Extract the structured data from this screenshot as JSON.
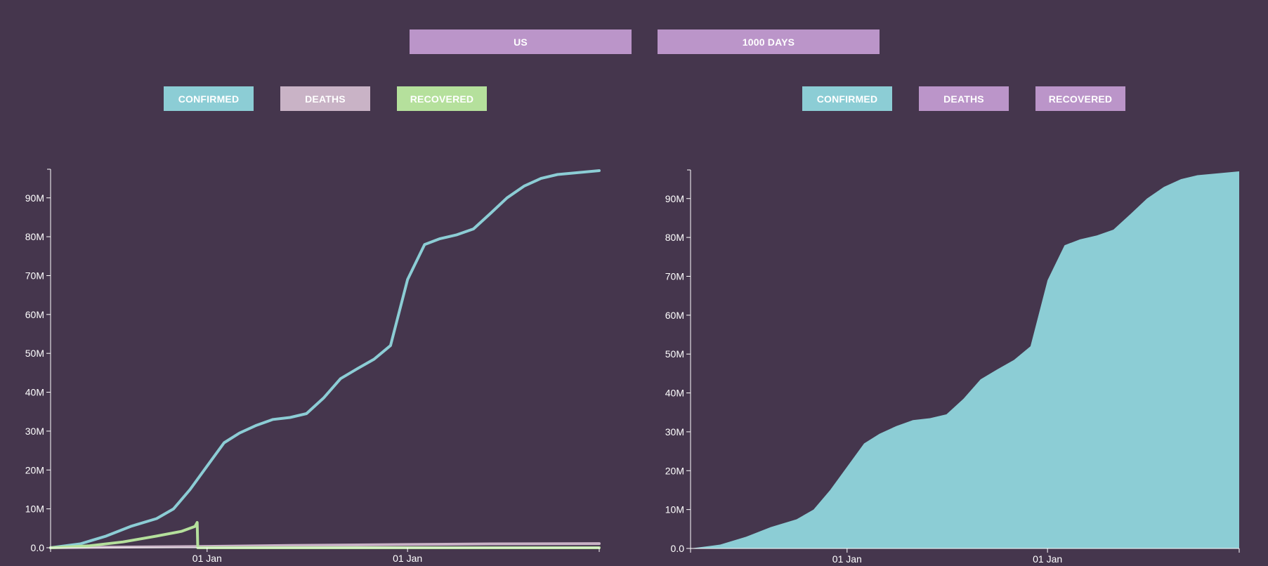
{
  "controls": {
    "country_label": "US",
    "period_label": "1000 DAYS"
  },
  "left_panel": {
    "buttons": [
      {
        "label": "CONFIRMED",
        "color": "#8ccdd5",
        "active": true
      },
      {
        "label": "DEATHS",
        "color": "#c9b3c6",
        "active": true
      },
      {
        "label": "RECOVERED",
        "color": "#b5e09c",
        "active": true
      }
    ]
  },
  "right_panel": {
    "buttons": [
      {
        "label": "CONFIRMED",
        "color": "#8ccdd5",
        "active": true
      },
      {
        "label": "DEATHS",
        "color": "#bb95c9",
        "active": false
      },
      {
        "label": "RECOVERED",
        "color": "#bb95c9",
        "active": false
      }
    ]
  },
  "colors": {
    "background": "#45364d",
    "confirmed": "#8ccdd5",
    "deaths": "#c9b3c6",
    "recovered": "#b5e09c",
    "inactive_button": "#bb95c9",
    "axis": "#ffffff"
  },
  "chart_data": [
    {
      "type": "line",
      "title": "",
      "xlabel": "",
      "ylabel": "",
      "ylim": [
        0,
        97000000
      ],
      "yticks": [
        0,
        10000000,
        20000000,
        30000000,
        40000000,
        50000000,
        60000000,
        70000000,
        80000000,
        90000000
      ],
      "ytick_labels": [
        "0.0",
        "10M",
        "20M",
        "30M",
        "40M",
        "50M",
        "60M",
        "70M",
        "80M",
        "90M"
      ],
      "xlim": [
        "2020-03-22",
        "2022-12-16"
      ],
      "xticks": [
        "2021-01-01",
        "2022-01-01"
      ],
      "xtick_labels": [
        "01 Jan",
        "01 Jan"
      ],
      "grid": false,
      "series": [
        {
          "name": "CONFIRMED",
          "color": "#8ccdd5",
          "points": [
            [
              "2020-03-22",
              0
            ],
            [
              "2020-05-15",
              1000000
            ],
            [
              "2020-07-01",
              3000000
            ],
            [
              "2020-08-15",
              5500000
            ],
            [
              "2020-10-01",
              7500000
            ],
            [
              "2020-11-01",
              10000000
            ],
            [
              "2020-12-01",
              15000000
            ],
            [
              "2021-01-01",
              21000000
            ],
            [
              "2021-02-01",
              27000000
            ],
            [
              "2021-03-01",
              29500000
            ],
            [
              "2021-04-01",
              31500000
            ],
            [
              "2021-05-01",
              33000000
            ],
            [
              "2021-06-01",
              33500000
            ],
            [
              "2021-07-01",
              34500000
            ],
            [
              "2021-08-01",
              38500000
            ],
            [
              "2021-09-01",
              43500000
            ],
            [
              "2021-10-01",
              46000000
            ],
            [
              "2021-11-01",
              48500000
            ],
            [
              "2021-12-01",
              52000000
            ],
            [
              "2022-01-01",
              69000000
            ],
            [
              "2022-02-01",
              78000000
            ],
            [
              "2022-03-01",
              79500000
            ],
            [
              "2022-04-01",
              80500000
            ],
            [
              "2022-05-01",
              82000000
            ],
            [
              "2022-06-01",
              86000000
            ],
            [
              "2022-07-01",
              90000000
            ],
            [
              "2022-08-01",
              93000000
            ],
            [
              "2022-09-01",
              95000000
            ],
            [
              "2022-10-01",
              96000000
            ],
            [
              "2022-12-16",
              97000000
            ]
          ]
        },
        {
          "name": "DEATHS",
          "color": "#c9b3c6",
          "points": [
            [
              "2020-03-22",
              0
            ],
            [
              "2020-06-01",
              100000
            ],
            [
              "2020-12-01",
              280000
            ],
            [
              "2021-01-01",
              350000
            ],
            [
              "2021-06-01",
              600000
            ],
            [
              "2022-01-01",
              830000
            ],
            [
              "2022-06-01",
              1000000
            ],
            [
              "2022-12-16",
              1070000
            ]
          ]
        },
        {
          "name": "RECOVERED",
          "color": "#b5e09c",
          "points": [
            [
              "2020-03-22",
              0
            ],
            [
              "2020-06-01",
              500000
            ],
            [
              "2020-08-01",
              1500000
            ],
            [
              "2020-10-01",
              3000000
            ],
            [
              "2020-11-15",
              4200000
            ],
            [
              "2020-12-10",
              5500000
            ],
            [
              "2020-12-14",
              6500000
            ],
            [
              "2020-12-15",
              0
            ],
            [
              "2022-12-16",
              0
            ]
          ]
        }
      ]
    },
    {
      "type": "area",
      "title": "",
      "xlabel": "",
      "ylabel": "",
      "ylim": [
        0,
        97000000
      ],
      "yticks": [
        0,
        10000000,
        20000000,
        30000000,
        40000000,
        50000000,
        60000000,
        70000000,
        80000000,
        90000000
      ],
      "ytick_labels": [
        "0.0",
        "10M",
        "20M",
        "30M",
        "40M",
        "50M",
        "60M",
        "70M",
        "80M",
        "90M"
      ],
      "xlim": [
        "2020-03-22",
        "2022-12-16"
      ],
      "xticks": [
        "2021-01-01",
        "2022-01-01"
      ],
      "xtick_labels": [
        "01 Jan",
        "01 Jan"
      ],
      "grid": false,
      "series": [
        {
          "name": "CONFIRMED",
          "color": "#8ccdd5",
          "points": [
            [
              "2020-03-22",
              0
            ],
            [
              "2020-05-15",
              1000000
            ],
            [
              "2020-07-01",
              3000000
            ],
            [
              "2020-08-15",
              5500000
            ],
            [
              "2020-10-01",
              7500000
            ],
            [
              "2020-11-01",
              10000000
            ],
            [
              "2020-12-01",
              15000000
            ],
            [
              "2021-01-01",
              21000000
            ],
            [
              "2021-02-01",
              27000000
            ],
            [
              "2021-03-01",
              29500000
            ],
            [
              "2021-04-01",
              31500000
            ],
            [
              "2021-05-01",
              33000000
            ],
            [
              "2021-06-01",
              33500000
            ],
            [
              "2021-07-01",
              34500000
            ],
            [
              "2021-08-01",
              38500000
            ],
            [
              "2021-09-01",
              43500000
            ],
            [
              "2021-10-01",
              46000000
            ],
            [
              "2021-11-01",
              48500000
            ],
            [
              "2021-12-01",
              52000000
            ],
            [
              "2022-01-01",
              69000000
            ],
            [
              "2022-02-01",
              78000000
            ],
            [
              "2022-03-01",
              79500000
            ],
            [
              "2022-04-01",
              80500000
            ],
            [
              "2022-05-01",
              82000000
            ],
            [
              "2022-06-01",
              86000000
            ],
            [
              "2022-07-01",
              90000000
            ],
            [
              "2022-08-01",
              93000000
            ],
            [
              "2022-09-01",
              95000000
            ],
            [
              "2022-10-01",
              96000000
            ],
            [
              "2022-12-16",
              97000000
            ]
          ]
        }
      ]
    }
  ]
}
